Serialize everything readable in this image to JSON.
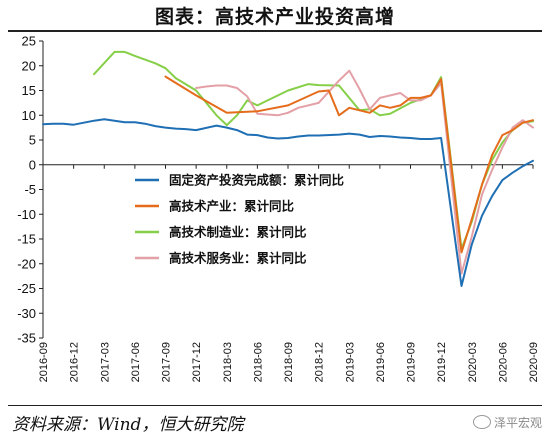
{
  "header": {
    "title": "图表：高技术产业投资高增"
  },
  "footer": {
    "source": "资料来源：Wind，恒大研究院",
    "watermark": "泽平宏观"
  },
  "chart_data": {
    "type": "line",
    "title": "图表：高技术产业投资高增",
    "xlabel": "",
    "ylabel": "",
    "ylim": [
      -35,
      25
    ],
    "yticks": [
      25,
      20,
      15,
      10,
      5,
      0,
      -5,
      -10,
      -15,
      -20,
      -25,
      -30,
      -35
    ],
    "xlim": [
      "2016-09",
      "2020-09"
    ],
    "xticks": [
      "2016-09",
      "2016-12",
      "2017-03",
      "2017-06",
      "2017-09",
      "2017-12",
      "2018-03",
      "2018-06",
      "2018-09",
      "2018-12",
      "2019-03",
      "2019-06",
      "2019-09",
      "2019-12",
      "2020-03",
      "2020-06",
      "2020-09"
    ],
    "legend_position": "lower-left (inside plot)",
    "grid": false,
    "series": [
      {
        "name": "固定资产投资完成额：累计同比",
        "color": "#1f6fb4",
        "x": [
          "2016-09",
          "2016-10",
          "2016-11",
          "2016-12",
          "2017-02",
          "2017-03",
          "2017-04",
          "2017-05",
          "2017-06",
          "2017-07",
          "2017-08",
          "2017-09",
          "2017-10",
          "2017-11",
          "2017-12",
          "2018-02",
          "2018-03",
          "2018-04",
          "2018-05",
          "2018-06",
          "2018-07",
          "2018-08",
          "2018-09",
          "2018-10",
          "2018-11",
          "2018-12",
          "2019-02",
          "2019-03",
          "2019-04",
          "2019-05",
          "2019-06",
          "2019-07",
          "2019-08",
          "2019-09",
          "2019-10",
          "2019-11",
          "2019-12",
          "2020-02",
          "2020-03",
          "2020-04",
          "2020-05",
          "2020-06",
          "2020-07",
          "2020-08",
          "2020-09"
        ],
        "y": [
          8.2,
          8.3,
          8.3,
          8.1,
          8.9,
          9.2,
          8.9,
          8.6,
          8.6,
          8.3,
          7.8,
          7.5,
          7.3,
          7.2,
          7.0,
          7.9,
          7.5,
          7.0,
          6.1,
          6.0,
          5.5,
          5.3,
          5.4,
          5.7,
          5.9,
          5.9,
          6.1,
          6.3,
          6.1,
          5.6,
          5.8,
          5.7,
          5.5,
          5.4,
          5.2,
          5.2,
          5.4,
          -24.5,
          -16.1,
          -10.3,
          -6.3,
          -3.1,
          -1.6,
          -0.3,
          0.8
        ]
      },
      {
        "name": "高技术产业：累计同比",
        "color": "#e46c1b",
        "x": [
          "2017-09",
          "2017-12",
          "2018-03",
          "2018-06",
          "2018-09",
          "2018-12",
          "2019-01",
          "2019-02",
          "2019-03",
          "2019-04",
          "2019-05",
          "2019-06",
          "2019-07",
          "2019-08",
          "2019-09",
          "2019-10",
          "2019-11",
          "2019-12",
          "2020-02",
          "2020-03",
          "2020-04",
          "2020-05",
          "2020-06",
          "2020-07",
          "2020-08",
          "2020-09"
        ],
        "y": [
          17.8,
          14.0,
          10.5,
          10.8,
          12.0,
          14.8,
          15.0,
          10.0,
          11.5,
          11.0,
          10.5,
          12.0,
          11.5,
          12.0,
          13.5,
          13.5,
          14.0,
          17.3,
          -17.7,
          -11.0,
          -4.0,
          2.0,
          6.0,
          7.0,
          8.5,
          9.0
        ]
      },
      {
        "name": "高技术制造业：累计同比",
        "color": "#86cf48",
        "x": [
          "2017-02",
          "2017-04",
          "2017-05",
          "2017-06",
          "2017-08",
          "2017-09",
          "2017-10",
          "2017-12",
          "2018-02",
          "2018-03",
          "2018-04",
          "2018-05",
          "2018-06",
          "2018-07",
          "2018-09",
          "2018-11",
          "2018-12",
          "2019-02",
          "2019-04",
          "2019-05",
          "2019-06",
          "2019-07",
          "2019-09",
          "2019-11",
          "2019-12",
          "2020-02",
          "2020-03",
          "2020-04",
          "2020-05",
          "2020-06",
          "2020-07",
          "2020-08",
          "2020-09"
        ],
        "y": [
          18.3,
          22.8,
          22.8,
          22.0,
          20.5,
          19.5,
          17.5,
          15.0,
          10.0,
          8.0,
          10.0,
          13.0,
          12.0,
          13.0,
          15.0,
          16.3,
          16.1,
          16.0,
          11.0,
          11.2,
          10.0,
          10.3,
          12.5,
          14.0,
          17.7,
          -17.0,
          -11.5,
          -4.0,
          1.0,
          4.5,
          7.0,
          8.5,
          8.8
        ]
      },
      {
        "name": "高技术服务业：累计同比",
        "color": "#e3a0a6",
        "x": [
          "2017-12",
          "2018-01",
          "2018-02",
          "2018-03",
          "2018-04",
          "2018-05",
          "2018-06",
          "2018-08",
          "2018-09",
          "2018-10",
          "2018-12",
          "2019-02",
          "2019-03",
          "2019-04",
          "2019-05",
          "2019-06",
          "2019-08",
          "2019-09",
          "2019-10",
          "2019-11",
          "2019-12",
          "2020-02",
          "2020-03",
          "2020-04",
          "2020-05",
          "2020-06",
          "2020-07",
          "2020-08",
          "2020-09"
        ],
        "y": [
          15.5,
          15.8,
          16.0,
          16.0,
          15.5,
          13.8,
          10.3,
          10.0,
          10.5,
          11.5,
          12.5,
          17.0,
          19.0,
          15.3,
          11.2,
          13.5,
          14.5,
          13.0,
          13.0,
          14.0,
          16.5,
          -22.0,
          -14.5,
          -6.0,
          -1.0,
          3.5,
          7.5,
          9.0,
          7.5
        ]
      }
    ]
  }
}
